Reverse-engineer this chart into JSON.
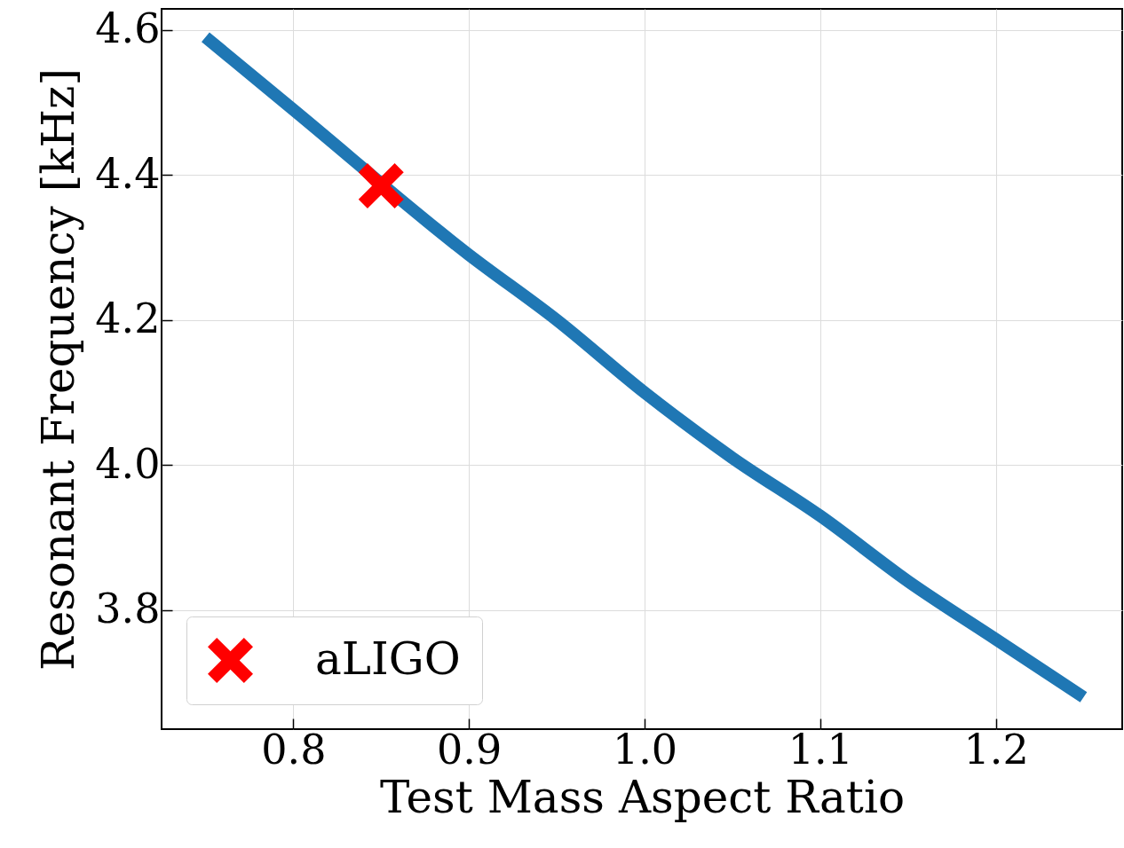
{
  "chart_data": {
    "type": "line",
    "xlabel": "Test Mass Aspect Ratio",
    "ylabel": "Resonant Frequency [kHz]",
    "xlim": [
      0.725,
      1.272
    ],
    "ylim": [
      3.636,
      4.629
    ],
    "xticks": [
      0.8,
      0.9,
      {
        "value": 1.0,
        "label": "1.0"
      },
      1.1,
      1.2
    ],
    "yticks": [
      3.8,
      {
        "value": 4.0,
        "label": "4.0"
      },
      4.2,
      4.4,
      4.6
    ],
    "grid": true,
    "legend": "bottom left",
    "series": [
      {
        "color": "#1f77b4",
        "x": [
          0.75,
          0.8,
          0.9,
          0.95,
          1.0,
          1.05,
          1.1,
          1.15,
          1.2,
          1.25
        ],
        "values": [
          4.59,
          4.49,
          4.29,
          4.2,
          4.1,
          4.01,
          3.93,
          3.84,
          3.76,
          3.68
        ]
      },
      {
        "type": "scatter",
        "name": "aLIGO",
        "color": "#ff0000",
        "marker": "cross",
        "x": [
          0.85
        ],
        "values": [
          4.385
        ]
      }
    ]
  }
}
